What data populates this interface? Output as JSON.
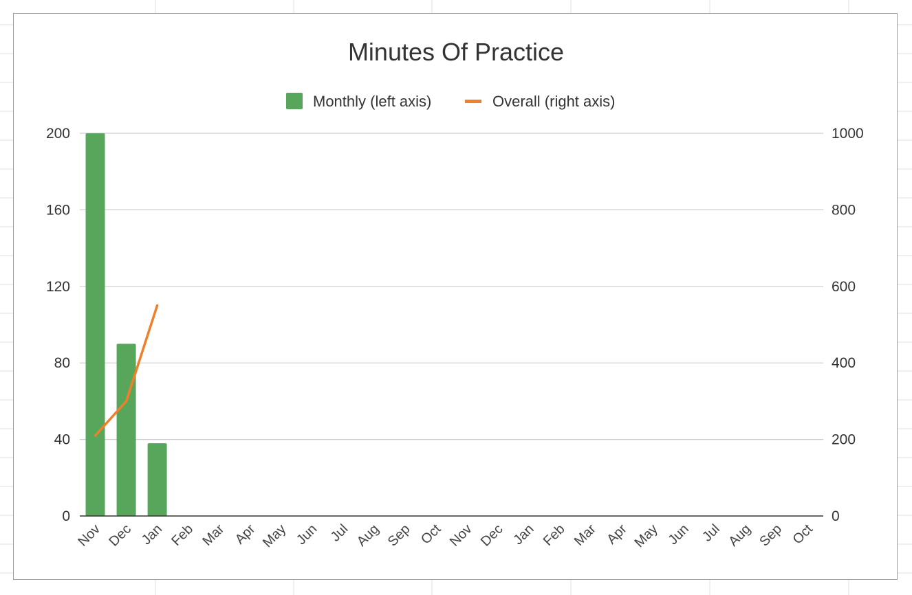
{
  "colors": {
    "monthly_bar": "#57a65b",
    "overall_line": "#f07f2c",
    "gridline": "#cccccc",
    "baseline": "#333333",
    "sheet_grid": "#e2e2e2",
    "frame_border": "#9e9e9e"
  },
  "chart_data": {
    "type": "bar",
    "title": "Minutes Of Practice",
    "legend_position": "top",
    "grid": true,
    "categories": [
      "Nov",
      "Dec",
      "Jan",
      "Feb",
      "Mar",
      "Apr",
      "May",
      "Jun",
      "Jul",
      "Aug",
      "Sep",
      "Oct",
      "Nov",
      "Dec",
      "Jan",
      "Feb",
      "Mar",
      "Apr",
      "May",
      "Jun",
      "Jul",
      "Aug",
      "Sep",
      "Oct"
    ],
    "left_axis": {
      "ylim": [
        0,
        200
      ],
      "ticks": [
        "0",
        "40",
        "80",
        "120",
        "160",
        "200"
      ]
    },
    "right_axis": {
      "ylim": [
        0,
        1000
      ],
      "ticks": [
        "0",
        "200",
        "400",
        "600",
        "800",
        "1000"
      ]
    },
    "series": [
      {
        "name": "Monthly (left axis)",
        "type": "bar",
        "axis": "left",
        "values": [
          200,
          90,
          38,
          null,
          null,
          null,
          null,
          null,
          null,
          null,
          null,
          null,
          null,
          null,
          null,
          null,
          null,
          null,
          null,
          null,
          null,
          null,
          null,
          null
        ]
      },
      {
        "name": "Overall (right axis)",
        "type": "line",
        "axis": "right",
        "values": [
          210,
          300,
          550,
          null,
          null,
          null,
          null,
          null,
          null,
          null,
          null,
          null,
          null,
          null,
          null,
          null,
          null,
          null,
          null,
          null,
          null,
          null,
          null,
          null
        ]
      }
    ]
  }
}
